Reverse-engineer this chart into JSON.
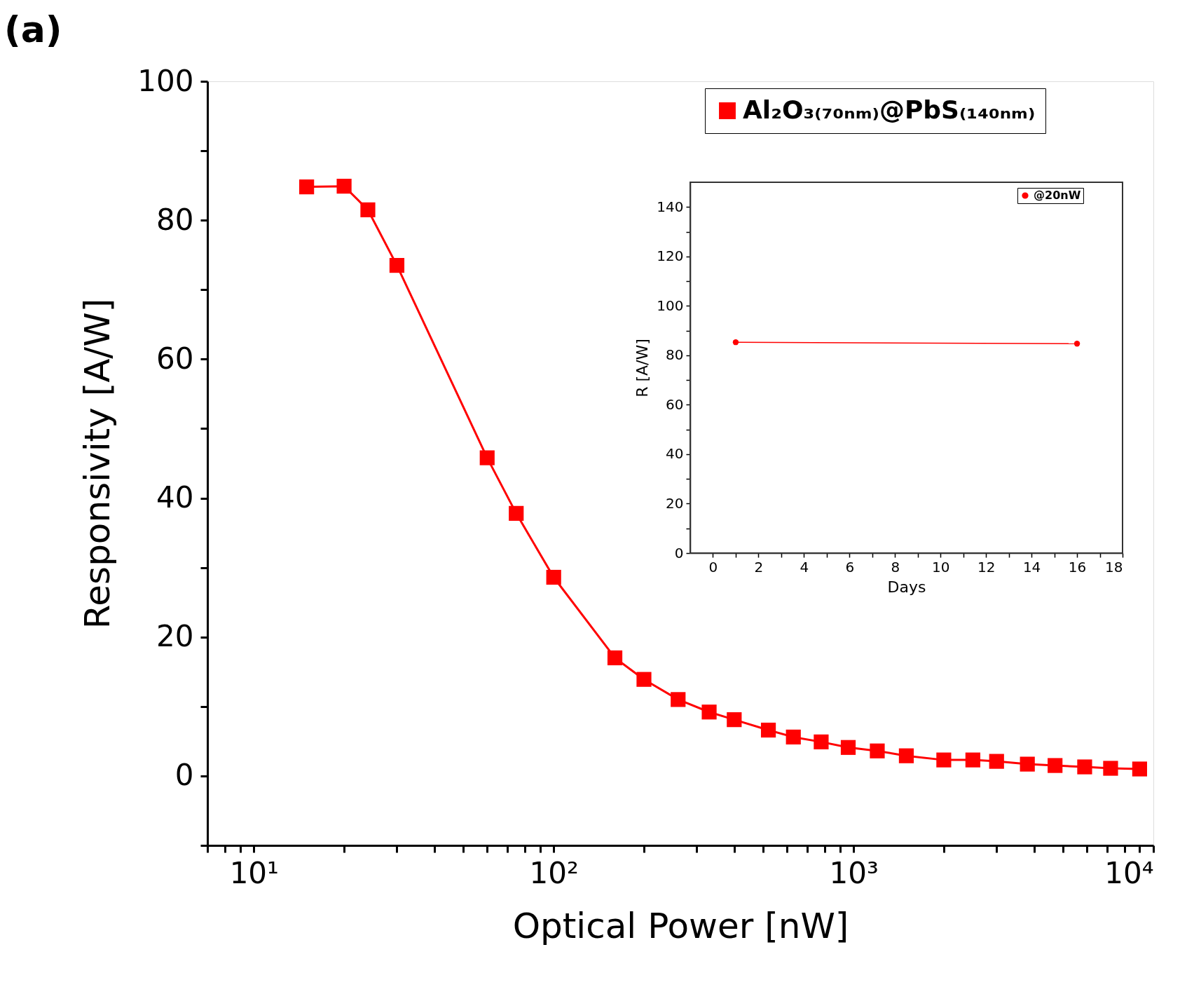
{
  "chart_data": [
    {
      "type": "line",
      "title": "(a)",
      "xlabel": "Optical Power [nW]",
      "ylabel": "Responsivity [A/W]",
      "log": "x",
      "marker": "square",
      "line_style": "solid",
      "grid": false,
      "legend": "top right",
      "xlim": [
        7,
        10000
      ],
      "xticks": [
        {
          "value": 7,
          "label": null
        },
        {
          "value": 8,
          "label": null
        },
        {
          "value": 9,
          "label": null
        },
        {
          "value": 10,
          "label": "10¹"
        },
        {
          "value": 20,
          "label": null
        },
        {
          "value": 30,
          "label": null
        },
        {
          "value": 40,
          "label": null
        },
        {
          "value": 50,
          "label": null
        },
        {
          "value": 60,
          "label": null
        },
        {
          "value": 70,
          "label": null
        },
        {
          "value": 80,
          "label": null
        },
        {
          "value": 90,
          "label": null
        },
        {
          "value": 100,
          "label": "10²"
        },
        {
          "value": 200,
          "label": null
        },
        {
          "value": 300,
          "label": null
        },
        {
          "value": 400,
          "label": null
        },
        {
          "value": 500,
          "label": null
        },
        {
          "value": 600,
          "label": null
        },
        {
          "value": 700,
          "label": null
        },
        {
          "value": 800,
          "label": null
        },
        {
          "value": 900,
          "label": null
        },
        {
          "value": 1000,
          "label": "10³"
        },
        {
          "value": 2000,
          "label": null
        },
        {
          "value": 3000,
          "label": null
        },
        {
          "value": 4000,
          "label": null
        },
        {
          "value": 5000,
          "label": null
        },
        {
          "value": 6000,
          "label": null
        },
        {
          "value": 7000,
          "label": null
        },
        {
          "value": 8000,
          "label": null
        },
        {
          "value": 9000,
          "label": null
        },
        {
          "value": 10000,
          "label": "10⁴"
        }
      ],
      "ylim": [
        -10,
        100
      ],
      "yticks": [
        {
          "value": -10,
          "label": null
        },
        0,
        {
          "value": 10,
          "label": null
        },
        20,
        {
          "value": 30,
          "label": null
        },
        40,
        {
          "value": 50,
          "label": null
        },
        60,
        {
          "value": 70,
          "label": null
        },
        80,
        {
          "value": 90,
          "label": null
        },
        100
      ],
      "series": [
        {
          "name": "Al₂O₃₍₇₀ₙₘ₎@PbS₍₁₄₀ₙₘ₎",
          "color": "#ff0000",
          "x": [
            15,
            20,
            24,
            30,
            60,
            75,
            100,
            160,
            200,
            260,
            330,
            400,
            520,
            630,
            780,
            960,
            1200,
            1500,
            2000,
            2500,
            3000,
            3800,
            4700,
            5900,
            7200,
            9000
          ],
          "values": [
            84.8,
            84.9,
            81.5,
            73.5,
            45.8,
            37.8,
            28.6,
            17.0,
            13.9,
            11.0,
            9.2,
            8.1,
            6.6,
            5.6,
            4.9,
            4.1,
            3.6,
            2.9,
            2.3,
            2.3,
            2.1,
            1.7,
            1.5,
            1.3,
            1.1,
            1.0
          ]
        }
      ]
    },
    {
      "type": "line",
      "xlabel": "Days",
      "ylabel": "R [A/W]",
      "marker": "circle",
      "line_style": "solid",
      "grid": false,
      "legend": "top right",
      "xlim": [
        -1,
        18
      ],
      "xticks": [
        0,
        {
          "value": 1,
          "label": null
        },
        2,
        {
          "value": 3,
          "label": null
        },
        4,
        {
          "value": 5,
          "label": null
        },
        6,
        {
          "value": 7,
          "label": null
        },
        8,
        {
          "value": 9,
          "label": null
        },
        10,
        {
          "value": 11,
          "label": null
        },
        12,
        {
          "value": 13,
          "label": null
        },
        14,
        {
          "value": 15,
          "label": null
        },
        16,
        {
          "value": 17,
          "label": null
        },
        18
      ],
      "ylim": [
        0,
        150
      ],
      "yticks": [
        0,
        {
          "value": 10,
          "label": null
        },
        20,
        {
          "value": 30,
          "label": null
        },
        40,
        {
          "value": 50,
          "label": null
        },
        60,
        {
          "value": 70,
          "label": null
        },
        80,
        {
          "value": 90,
          "label": null
        },
        100,
        {
          "value": 110,
          "label": null
        },
        120,
        {
          "value": 130,
          "label": null
        },
        140
      ],
      "series": [
        {
          "name": "@20nW",
          "color": "#ff0000",
          "x": [
            1,
            16
          ],
          "values": [
            85.3,
            84.7
          ]
        }
      ]
    }
  ]
}
